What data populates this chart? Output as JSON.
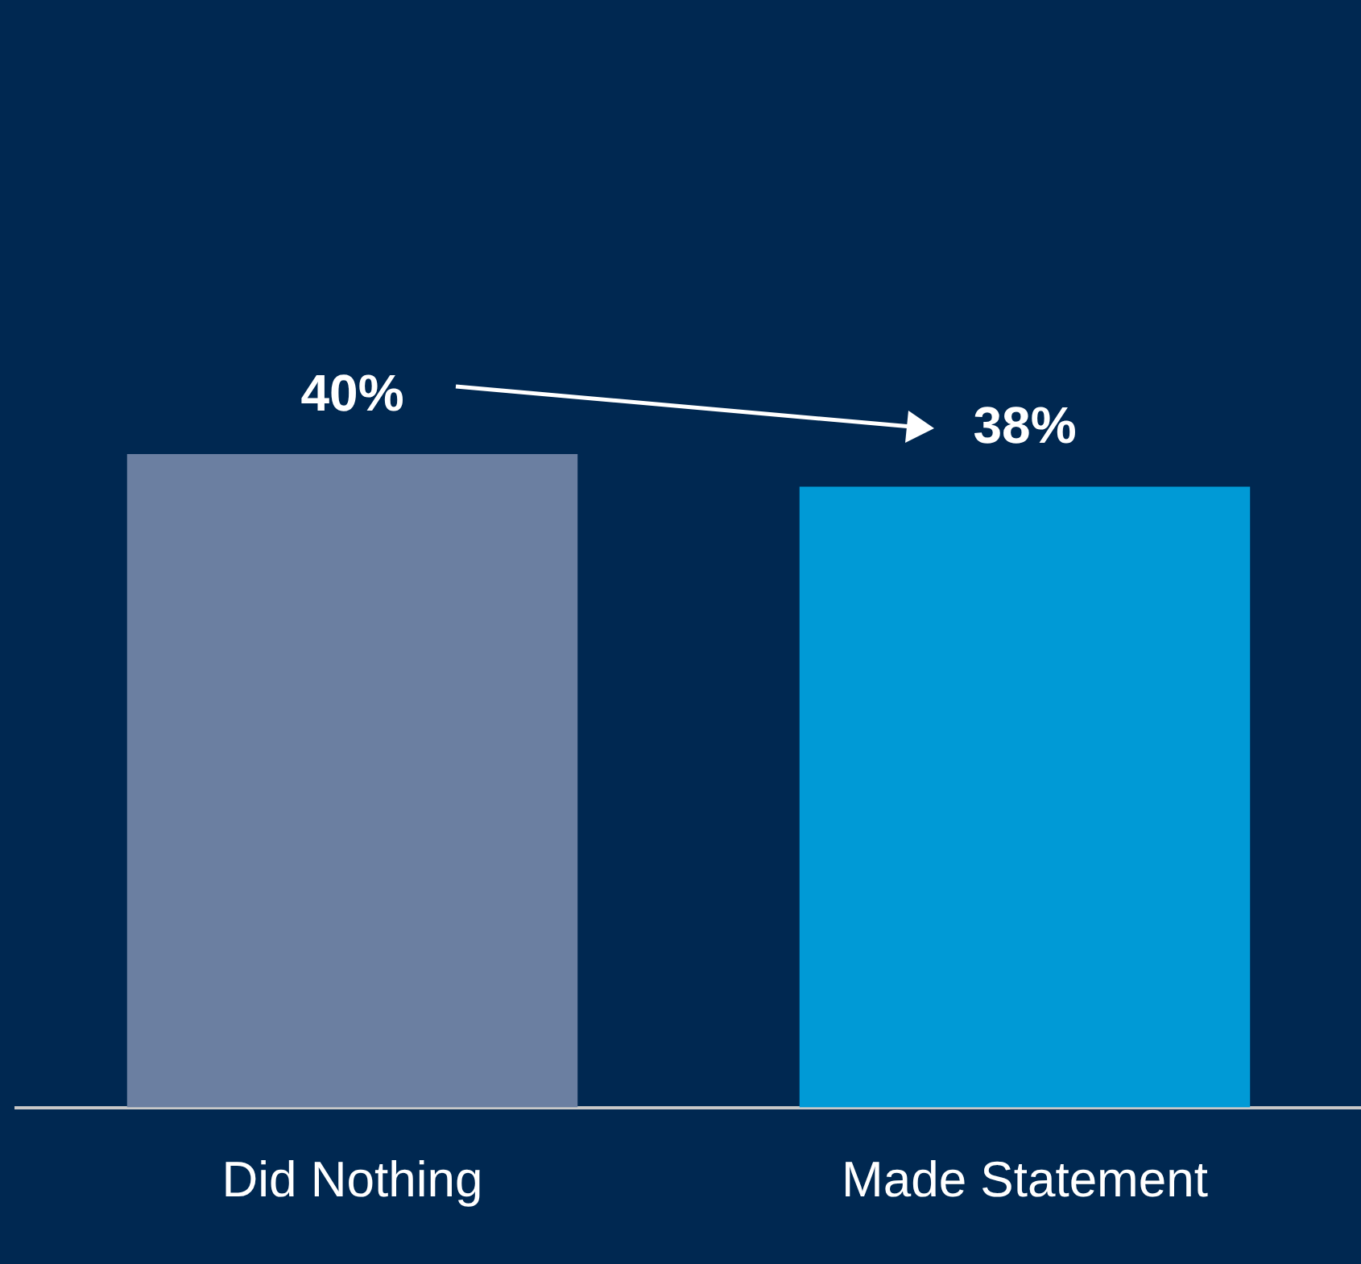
{
  "chart_data": {
    "type": "bar",
    "categories": [
      "Did Nothing",
      "Made Statement"
    ],
    "values": [
      40,
      38
    ],
    "colors": [
      "#6b7fa1",
      "#009ad6"
    ],
    "value_labels": [
      "40%",
      "38%"
    ],
    "grid": false,
    "legend": false,
    "tick_labels": "x"
  }
}
